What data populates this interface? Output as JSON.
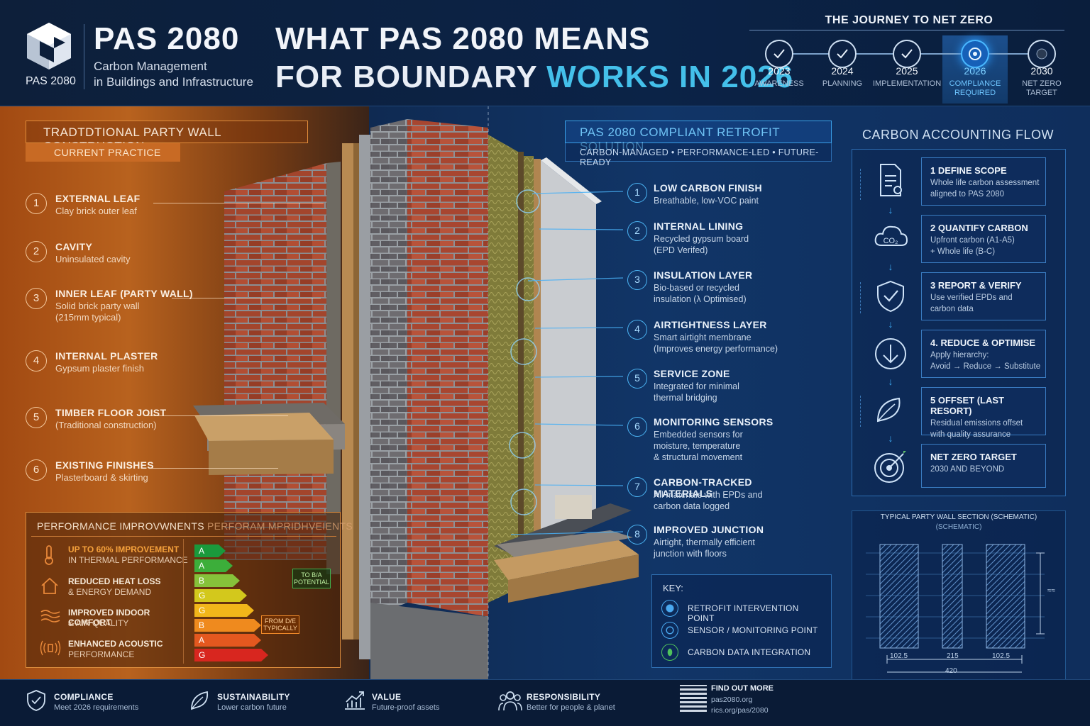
{
  "brand": {
    "logo_text": "PAS 2080",
    "title": "PAS 2080",
    "subtitle_line1": "Carbon Management",
    "subtitle_line2": "in Buildings and Infrastructure"
  },
  "headline": {
    "line1": "WHAT PAS 2080 MEANS",
    "line2_prefix": "FOR BOUNDARY",
    "line2_highlight": "WORKS IN 2026"
  },
  "journey": {
    "title": "THE JOURNEY TO NET ZERO",
    "steps": [
      {
        "year": "2023",
        "label": "AWARENESS",
        "state": "done"
      },
      {
        "year": "2024",
        "label": "PLANNING",
        "state": "done"
      },
      {
        "year": "2025",
        "label": "IMPLEMENTATION",
        "state": "done"
      },
      {
        "year": "2026",
        "label_line1": "COMPLIANCE",
        "label_line2": "REQUIRED",
        "state": "current"
      },
      {
        "year": "2030",
        "label_line1": "NET ZERO",
        "label_line2": "TARGET",
        "state": "future"
      }
    ]
  },
  "traditional": {
    "title": "TRADTDTIONAL PARTY WALL CONSTRUCTION",
    "subtitle": "CURRENT PRACTICE",
    "items": [
      {
        "num": "1",
        "head": "EXTERNAL LEAF",
        "desc": "Clay brick outer leaf"
      },
      {
        "num": "2",
        "head": "CAVITY",
        "desc": "Uninsulated cavity"
      },
      {
        "num": "3",
        "head": "INNER LEAF (PARTY WALL)",
        "desc1": "Solid brick party wall",
        "desc2": "(215mm typical)"
      },
      {
        "num": "4",
        "head": "INTERNAL PLASTER",
        "desc": "Gypsum plaster finish"
      },
      {
        "num": "5",
        "head": "TIMBER FLOOR JOIST",
        "desc": "(Traditional construction)"
      },
      {
        "num": "6",
        "head": "EXISTING FINISHES",
        "desc": "Plasterboard & skirting"
      }
    ]
  },
  "performance": {
    "title": "PERFORMANCE IMPROVWNENTS",
    "title2": "PERFORAM MPRIDHVEIENTS",
    "items": [
      {
        "t1": "UP TO 60% IMPROVEMENT",
        "t2": "IN THERMAL PERFORMANCE",
        "icon": "thermometer-icon"
      },
      {
        "t1": "REDUCED HEAT LOSS",
        "t2": "& ENERGY DEMAND",
        "icon": "house-icon"
      },
      {
        "t1": "IMPROVED INDOOR COMFORT",
        "t2": "& AIR QUALITY",
        "icon": "airflow-icon"
      },
      {
        "t1": "ENHANCED ACOUSTIC",
        "t2": "PERFORMANCE",
        "icon": "sound-icon"
      }
    ],
    "epc_bars": [
      {
        "label": "A",
        "color": "#1a9a3c"
      },
      {
        "label": "A",
        "color": "#3cae3a"
      },
      {
        "label": "B",
        "color": "#86c23a"
      },
      {
        "label": "G",
        "color": "#d3c81c"
      },
      {
        "label": "G",
        "color": "#f2b61a"
      },
      {
        "label": "B",
        "color": "#ef8a1e"
      },
      {
        "label": "A",
        "color": "#e4581f"
      },
      {
        "label": "G",
        "color": "#d8261f"
      }
    ],
    "target_line1": "TO B/A",
    "target_line2": "POTENTIAL",
    "from_line1": "FROM D/E",
    "from_line2": "TYPICALLY"
  },
  "retrofit": {
    "title": "PAS 2080 COMPLIANT RETROFIT SOLUTION",
    "subtitle": "CARBON-MANAGED • PERFORMANCE-LED • FUTURE-READY",
    "items": [
      {
        "num": "1",
        "head": "LOW CARBON FINISH",
        "desc1": "Breathable, low-VOC paint"
      },
      {
        "num": "2",
        "head": "INTERNAL LINING",
        "desc1": "Recycled gypsum board",
        "desc2": "(EPD Verifed)"
      },
      {
        "num": "3",
        "head": "INSULATION LAYER",
        "desc1": "Bio-based or recycled",
        "desc2": "insulation (λ Optimised)"
      },
      {
        "num": "4",
        "head": "AIRTIGHTNESS LAYER",
        "desc1": "Smart airtight membrane",
        "desc2": "(Improves energy performance)"
      },
      {
        "num": "5",
        "head": "SERVICE ZONE",
        "desc1": "Integrated for minimal",
        "desc2": "thermal bridging"
      },
      {
        "num": "6",
        "head": "MONITORING SENSORS",
        "desc1": "Embedded sensors for",
        "desc2": "moisture, temperature",
        "desc3": "& structural movement"
      },
      {
        "num": "7",
        "head": "CARBON-TRACKED MATERIALS",
        "desc1": "All materials with EPDs and",
        "desc2": "carbon data logged"
      },
      {
        "num": "8",
        "head": "IMPROVED JUNCTION",
        "desc1": "Airtight, thermally efficient",
        "desc2": "junction with floors"
      }
    ]
  },
  "key": {
    "title": "KEY:",
    "items": [
      {
        "label": "RETROFIT INTERVENTION POINT"
      },
      {
        "label": "SENSOR / MONITORING POINT"
      },
      {
        "label": "CARBON DATA INTEGRATION"
      }
    ]
  },
  "flow": {
    "title": "CARBON ACCOUNTING FLOW",
    "steps": [
      {
        "title": "1 DEFINE SCOPE",
        "desc1": "Whole life carbon assessment",
        "desc2": "aligned to PAS 2080",
        "icon": "document-icon"
      },
      {
        "title": "2 QUANTIFY CARBON",
        "desc1": "Upfront carbon (A1-A5)",
        "desc2": "+ Whole life (B-C)",
        "icon": "co2-cloud-icon",
        "icon_text": "CO₂"
      },
      {
        "title": "3 REPORT & VERIFY",
        "desc1": "Use verified EPDs and",
        "desc2": "carbon data",
        "icon": "shield-check-icon"
      },
      {
        "title": "4. REDUCE & OPTIMISE",
        "desc1": "Apply hierarchy:",
        "desc2": "Avoid → Reduce → Substitute",
        "icon": "down-arrow-icon"
      },
      {
        "title": "5 OFFSET (LAST RESORT)",
        "desc1": "Residual emissions offset",
        "desc2": "with quality assurance",
        "icon": "leaf-icon"
      },
      {
        "title": "NET ZERO TARGET",
        "desc1": "2030 AND BEYOND",
        "desc2": "",
        "icon": "target-icon"
      }
    ]
  },
  "schematic": {
    "title": "TYPICAL PARTY WALL SECTION (SCHEMATIC)",
    "subtitle": "(SCHEMATIC)",
    "dim1": "102.5",
    "dim2": "215",
    "dim3": "102.5",
    "dim_total": "420",
    "dim_side": "≈≈"
  },
  "footer": {
    "items": [
      {
        "t1": "COMPLIANCE",
        "t2": "Meet 2026 requirements",
        "icon": "shield-check-icon"
      },
      {
        "t1": "SUSTAINABILITY",
        "t2": "Lower carbon future",
        "icon": "leaf-icon"
      },
      {
        "t1": "VALUE",
        "t2": "Future-proof assets",
        "icon": "chart-up-icon"
      },
      {
        "t1": "RESPONSIBILITY",
        "t2": "Better for people & planet",
        "icon": "people-icon"
      }
    ],
    "find_title": "FIND OUT MORE",
    "find_url1": "pas2080.org",
    "find_url2": "rics.org/pas/2080"
  }
}
